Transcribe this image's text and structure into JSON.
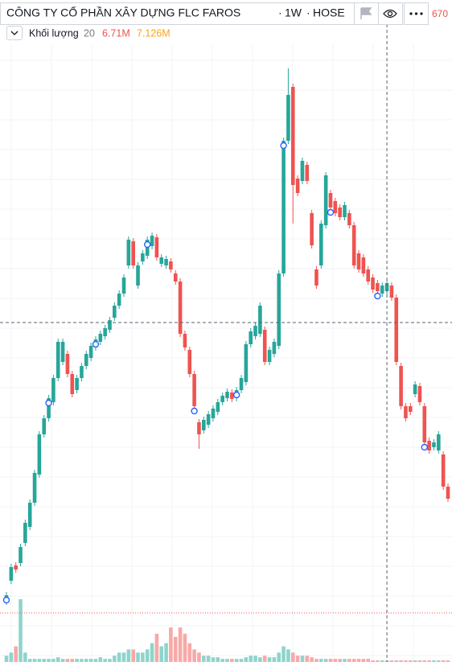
{
  "chart_data": {
    "type": "candlestick",
    "title": "CÔNG TY CỔ PHẦN XÂY DỰNG FLC FAROS",
    "interval": "1W",
    "exchange": "HOSE",
    "price_label": "670",
    "volume_legend": {
      "name": "Khối lượng",
      "length": 20,
      "last": "6.71M",
      "average": "7.126M"
    },
    "up_color": "#26a69a",
    "down_color": "#ef5350",
    "volume_up_color": "#8fd4cc",
    "volume_down_color": "#f7a9a7",
    "ylim": [
      0,
      800
    ],
    "volume_ylim": [
      0,
      20
    ],
    "open": [
      75,
      101,
      120,
      123,
      148,
      168,
      198,
      233,
      283,
      303,
      323,
      353,
      373,
      383,
      358,
      338,
      353,
      368,
      378,
      391,
      398,
      405,
      413,
      428,
      443,
      458,
      493,
      523,
      468,
      498,
      505,
      517,
      528,
      495,
      493,
      498,
      483,
      473,
      408,
      388,
      358,
      298,
      288,
      295,
      303,
      311,
      323,
      328,
      335,
      328,
      338,
      348,
      395,
      405,
      408,
      413,
      373,
      383,
      393,
      483,
      648,
      715,
      601,
      598,
      618,
      558,
      488,
      493,
      543,
      583,
      573,
      565,
      553,
      558,
      543,
      508,
      503,
      488,
      478,
      471,
      458,
      461,
      468,
      453,
      368,
      318,
      318,
      333,
      343,
      318,
      275,
      267,
      263,
      258,
      218
    ],
    "high": [
      87,
      122,
      124,
      147,
      177,
      202,
      239,
      287,
      307,
      332,
      357,
      402,
      402,
      387,
      362,
      357,
      372,
      387,
      397,
      405,
      412,
      419,
      429,
      447,
      462,
      482,
      529,
      527,
      497,
      512,
      529,
      534,
      532,
      507,
      505,
      502,
      487,
      477,
      412,
      392,
      362,
      302,
      305,
      312,
      319,
      327,
      335,
      340,
      339,
      342,
      357,
      399,
      415,
      422,
      447,
      417,
      392,
      402,
      487,
      652,
      738,
      719,
      605,
      627,
      622,
      562,
      492,
      549,
      609,
      587,
      577,
      569,
      572,
      562,
      547,
      512,
      507,
      492,
      482,
      475,
      472,
      475,
      472,
      457,
      372,
      322,
      322,
      349,
      347,
      322,
      279,
      277,
      287,
      262,
      222
    ],
    "low": [
      71,
      97,
      111,
      119,
      144,
      164,
      194,
      229,
      279,
      299,
      319,
      349,
      369,
      354,
      329,
      334,
      349,
      364,
      374,
      387,
      394,
      401,
      409,
      424,
      439,
      454,
      489,
      489,
      464,
      494,
      501,
      513,
      499,
      491,
      489,
      484,
      469,
      404,
      387,
      354,
      314,
      265,
      284,
      291,
      299,
      307,
      319,
      324,
      323,
      324,
      334,
      344,
      391,
      401,
      404,
      369,
      369,
      379,
      389,
      479,
      644,
      545,
      579,
      594,
      594,
      514,
      464,
      489,
      539,
      561,
      554,
      549,
      549,
      539,
      489,
      484,
      479,
      469,
      459,
      457,
      454,
      457,
      449,
      369,
      314,
      299,
      307,
      329,
      319,
      269,
      259,
      263,
      259,
      214,
      199
    ],
    "close": [
      83,
      118,
      115,
      143,
      173,
      198,
      235,
      283,
      303,
      328,
      353,
      398,
      398,
      358,
      333,
      353,
      368,
      383,
      393,
      401,
      408,
      415,
      425,
      443,
      458,
      478,
      525,
      493,
      493,
      508,
      525,
      530,
      503,
      503,
      501,
      488,
      473,
      408,
      391,
      358,
      318,
      283,
      301,
      308,
      315,
      323,
      331,
      336,
      327,
      338,
      353,
      395,
      411,
      418,
      443,
      373,
      388,
      398,
      483,
      648,
      705,
      593,
      583,
      623,
      598,
      518,
      468,
      545,
      605,
      565,
      558,
      553,
      568,
      543,
      493,
      488,
      483,
      473,
      463,
      461,
      468,
      471,
      453,
      373,
      318,
      303,
      311,
      345,
      323,
      273,
      263,
      273,
      283,
      218,
      203
    ],
    "volume": [
      2,
      3,
      5,
      20,
      3,
      1,
      1,
      1,
      1,
      1,
      1,
      1.5,
      1,
      1,
      1,
      1,
      1,
      1,
      1,
      1,
      1.5,
      1,
      1,
      2,
      3,
      3,
      4,
      4,
      3,
      3,
      4,
      6,
      9,
      5,
      6,
      11,
      8,
      11,
      9,
      6,
      4,
      3,
      2,
      2,
      1.5,
      1.5,
      1,
      1,
      1,
      1,
      1,
      1.5,
      2,
      2,
      1.5,
      2,
      1.5,
      1.5,
      3,
      5,
      4,
      3,
      2,
      2,
      2,
      1.5,
      1,
      1,
      1,
      1,
      1,
      1,
      1,
      1,
      1,
      1,
      1,
      1,
      0.5,
      0.5,
      0.5,
      0.5,
      0.5,
      0.5,
      0.5,
      0.5,
      0.5,
      0.5,
      0.5,
      0.5,
      0.5,
      0.5,
      0.5,
      0.5,
      0.5
    ],
    "markers": [
      0,
      9,
      19,
      30,
      40,
      49,
      59,
      69,
      79,
      89
    ],
    "crosshair": {
      "index": 81,
      "value": 422
    },
    "price_line": 61
  }
}
